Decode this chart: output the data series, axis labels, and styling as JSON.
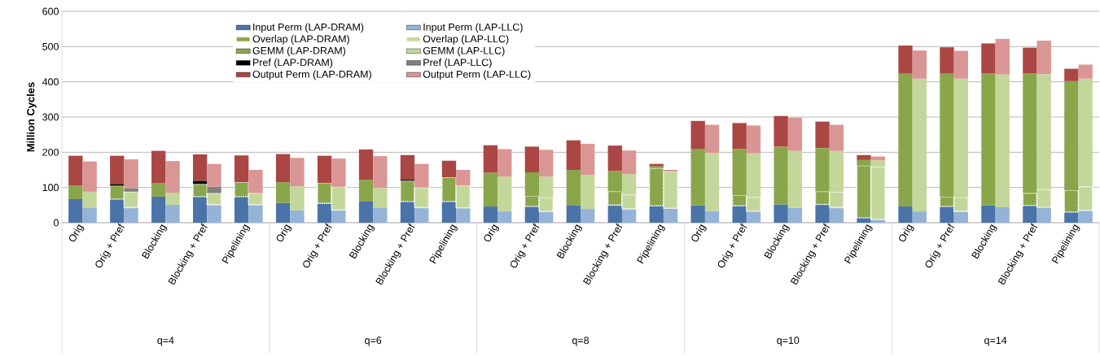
{
  "chart_data": {
    "type": "bar",
    "ylabel": "Million Cycles",
    "categories": [
      "Orig",
      "Orig + Pref",
      "Blocking",
      "Blocking + Pref",
      "Pipelining",
      "Orig",
      "Orig + Pref",
      "Blocking",
      "Blocking + Pref",
      "Pipelining",
      "Orig",
      "Orig + Pref",
      "Blocking",
      "Blocking + Pref",
      "Pipelining",
      "Orig",
      "Orig + Pref",
      "Blocking",
      "Blocking + Pref",
      "Pipelining",
      "Orig",
      "Orig + Pref",
      "Blocking",
      "Blocking + Pref",
      "Pipelining"
    ],
    "annotations": [
      "q=4",
      "q=6",
      "q=8",
      "q=10",
      "q=14"
    ],
    "ylim": [
      0,
      600
    ],
    "yticks": [
      0,
      100,
      200,
      300,
      400,
      500,
      600
    ],
    "grid": "y",
    "legend": "top left",
    "series": [
      {
        "name": "Input Perm (LAP-DRAM)",
        "color": "#4a73a8",
        "values": [
          67,
          67,
          74,
          74,
          74,
          56,
          55,
          60,
          60,
          60,
          46,
          46,
          50,
          50,
          48,
          49,
          48,
          52,
          52,
          14,
          46,
          46,
          49,
          49,
          30
        ],
        "base": [
          0,
          0,
          0,
          0,
          0,
          0,
          0,
          0,
          0,
          0,
          0,
          0,
          0,
          0,
          0,
          0,
          0,
          0,
          0,
          0,
          0,
          0,
          0,
          0,
          0
        ]
      },
      {
        "name": "Input Perm (LAP-LLC)",
        "color": "#95b3d7",
        "values": [
          43,
          43,
          51,
          51,
          51,
          35,
          36,
          43,
          43,
          42,
          32,
          32,
          39,
          39,
          41,
          33,
          33,
          42,
          43,
          9,
          32,
          32,
          44,
          44,
          35
        ],
        "base": [
          0,
          0,
          0,
          0,
          0,
          0,
          0,
          0,
          0,
          0,
          0,
          0,
          0,
          0,
          0,
          0,
          0,
          0,
          0,
          0,
          0,
          0,
          0,
          0,
          0
        ]
      },
      {
        "name": "Overlap (LAP-DRAM)",
        "color": "#8aa64b",
        "line_style": "dotted",
        "values": [
          null,
          38,
          null,
          36,
          41,
          null,
          58,
          null,
          59,
          69,
          null,
          30,
          null,
          39,
          107,
          null,
          30,
          null,
          37,
          148,
          null,
          28,
          null,
          35,
          62
        ],
        "base": [
          null,
          67,
          null,
          74,
          74,
          null,
          55,
          null,
          60,
          60,
          null,
          46,
          null,
          50,
          48,
          null,
          48,
          null,
          52,
          14,
          null,
          46,
          null,
          49,
          30
        ]
      },
      {
        "name": "Overlap (LAP-LLC)",
        "color": "#c4d79b",
        "line_style": "dotted",
        "values": [
          null,
          45,
          null,
          33,
          33,
          null,
          66,
          null,
          57,
          64,
          null,
          39,
          null,
          41,
          104,
          null,
          40,
          null,
          44,
          150,
          null,
          40,
          null,
          51,
          68
        ],
        "base": [
          null,
          43,
          null,
          51,
          51,
          null,
          36,
          null,
          43,
          42,
          null,
          32,
          null,
          39,
          41,
          null,
          33,
          null,
          43,
          9,
          null,
          32,
          null,
          44,
          35
        ]
      },
      {
        "name": "GEMM (LAP-DRAM)",
        "color": "#8aa64b",
        "values": [
          38,
          null,
          38,
          null,
          null,
          59,
          null,
          62,
          null,
          null,
          96,
          67,
          100,
          58,
          5,
          161,
          131,
          164,
          123,
          16,
          377,
          349,
          375,
          340,
          310
        ],
        "base": [
          67,
          null,
          74,
          null,
          null,
          56,
          null,
          60,
          null,
          null,
          46,
          76,
          50,
          89,
          155,
          49,
          78,
          52,
          89,
          162,
          46,
          74,
          49,
          84,
          92
        ]
      },
      {
        "name": "GEMM (LAP-LLC)",
        "color": "#c4d79b",
        "values": [
          45,
          null,
          34,
          null,
          null,
          68,
          null,
          56,
          null,
          null,
          99,
          60,
          97,
          58,
          null,
          165,
          124,
          162,
          117,
          18,
          377,
          337,
          377,
          327,
          306
        ],
        "base": [
          43,
          null,
          51,
          null,
          null,
          35,
          null,
          43,
          null,
          null,
          32,
          71,
          39,
          80,
          null,
          33,
          73,
          42,
          87,
          159,
          32,
          72,
          44,
          95,
          103
        ]
      },
      {
        "name": "Pref (LAP-DRAM)",
        "color": "#000000",
        "values": [
          null,
          5,
          null,
          9,
          null,
          null,
          null,
          null,
          3,
          null,
          null,
          null,
          null,
          null,
          null,
          null,
          null,
          null,
          null,
          null,
          null,
          null,
          null,
          null,
          null
        ],
        "base": [
          null,
          105,
          null,
          110,
          null,
          null,
          null,
          null,
          119,
          null,
          null,
          null,
          null,
          null,
          null,
          null,
          null,
          null,
          null,
          null,
          null,
          null,
          null,
          null,
          null
        ]
      },
      {
        "name": "Pref (LAP-LLC)",
        "color": "#808080",
        "values": [
          null,
          10,
          null,
          18,
          null,
          null,
          null,
          null,
          null,
          null,
          null,
          null,
          null,
          null,
          null,
          null,
          null,
          null,
          null,
          null,
          null,
          null,
          null,
          null,
          null
        ],
        "base": [
          null,
          88,
          null,
          84,
          null,
          null,
          null,
          null,
          null,
          null,
          null,
          null,
          null,
          null,
          null,
          null,
          null,
          null,
          null,
          null,
          null,
          null,
          null,
          null,
          null
        ]
      },
      {
        "name": "Output Perm (LAP-DRAM)",
        "color": "#aa4643",
        "values": [
          85,
          80,
          92,
          75,
          76,
          80,
          77,
          86,
          70,
          47,
          78,
          73,
          84,
          72,
          7,
          79,
          74,
          87,
          75,
          14,
          80,
          75,
          85,
          73,
          35
        ],
        "base": [
          105,
          110,
          112,
          119,
          115,
          115,
          113,
          122,
          122,
          129,
          142,
          143,
          150,
          147,
          160,
          210,
          209,
          216,
          212,
          178,
          423,
          423,
          424,
          424,
          402
        ]
      },
      {
        "name": "Output Perm (LAP-LLC)",
        "color": "#d99694",
        "values": [
          86,
          82,
          90,
          65,
          66,
          81,
          80,
          90,
          67,
          44,
          78,
          76,
          88,
          67,
          5,
          80,
          79,
          94,
          74,
          11,
          80,
          79,
          101,
          95,
          40
        ],
        "base": [
          88,
          98,
          85,
          102,
          84,
          103,
          102,
          99,
          100,
          106,
          131,
          131,
          136,
          138,
          145,
          198,
          197,
          204,
          204,
          177,
          409,
          409,
          421,
          422,
          409
        ]
      }
    ]
  }
}
